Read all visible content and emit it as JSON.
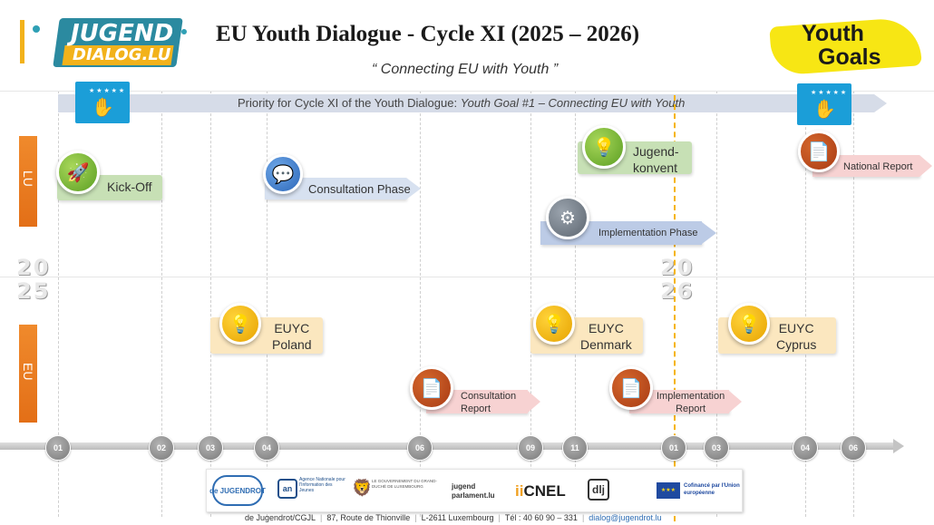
{
  "header": {
    "title": "EU Youth Dialogue  - Cycle XI (2025 – 2026)",
    "subtitle": "“ Connecting EU with Youth ”",
    "logo_left_line1": "JUGEND",
    "logo_left_line2": "DIALOG.LU",
    "logo_right_line1": "Youth",
    "logo_right_line2": "Goals"
  },
  "priority": {
    "prefix": "Priority for Cycle XI of the Youth Dialogue: ",
    "goal": "Youth Goal #1 – Connecting EU with Youth"
  },
  "sides": {
    "top": "LU",
    "bottom": "EU"
  },
  "years": {
    "start_top": "20",
    "start_bottom": "25",
    "end_top": "20",
    "end_bottom": "26"
  },
  "events": {
    "kickoff": "Kick-Off",
    "consultation_phase": "Consultation Phase",
    "jugendkonvent_line1": "Jugend-",
    "jugendkonvent_line2": "konvent",
    "implementation_phase": "Implementation Phase",
    "national_report": "National Report",
    "euyc_poland_line1": "EUYC",
    "euyc_poland_line2": "Poland",
    "euyc_denmark_line1": "EUYC",
    "euyc_denmark_line2": "Denmark",
    "euyc_cyprus_line1": "EUYC",
    "euyc_cyprus_line2": "Cyprus",
    "consultation_report_line1": "Consultation",
    "consultation_report_line2": "Report",
    "implementation_report_line1": "Implementation",
    "implementation_report_line2": "Report"
  },
  "months": [
    "01",
    "02",
    "03",
    "04",
    "06",
    "09",
    "11",
    "01",
    "03",
    "04",
    "06"
  ],
  "partners": {
    "jugendrot": "de JUGENDROT",
    "anij": "Agence Nationale pour l'Information des Jeunes",
    "gov": "LE GOUVERNEMENT DU GRAND-DUCHÉ DE LUXEMBOURG",
    "parlament": "jugend parlament.lu",
    "cnel": "CNEL",
    "dlj": "dlj",
    "eu": "Cofinancé par l'Union européenne"
  },
  "footer": {
    "org": "de Jugendrot/CGJL",
    "address": "87, Route de Thionville",
    "city": "L-2611 Luxembourg",
    "phone": "Tél : 40 60 90 – 331",
    "email": "dialog@jugendrot.lu"
  },
  "colors": {
    "orange": "#e36f17",
    "green": "#5b9e22",
    "yellow": "#e7a300",
    "blue": "#2b66b8",
    "red": "#a83b14",
    "eu_blue": "#1b9ed8",
    "today_line": "#f5b40a"
  }
}
